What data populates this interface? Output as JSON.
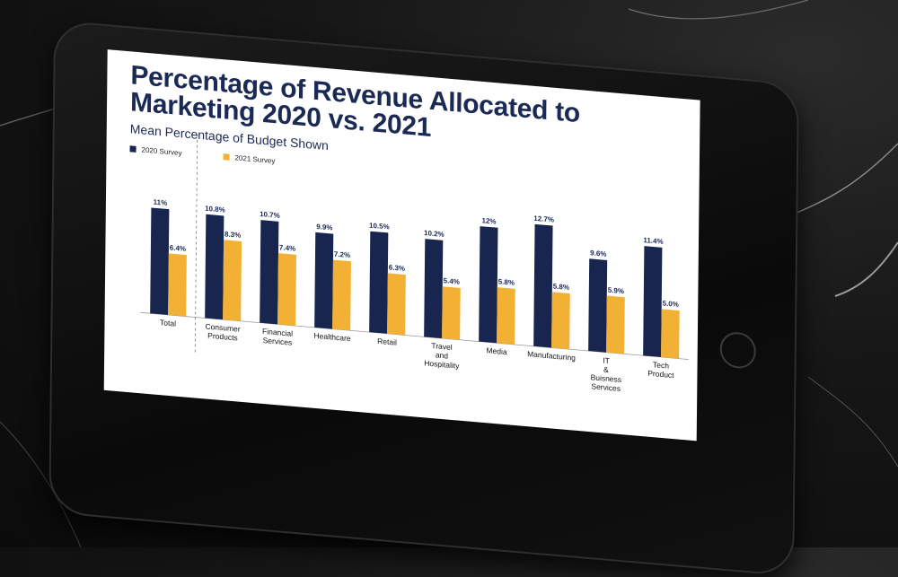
{
  "chart_data": {
    "type": "bar",
    "title": "Percentage of Revenue Allocated to Marketing 2020 vs. 2021",
    "subtitle": "Mean Percentage of Budget Shown",
    "categories": [
      "Total",
      "Consumer Products",
      "Financial Services",
      "Healthcare",
      "Retail",
      "Travel and Hospitality",
      "Media",
      "Manufacturing",
      "IT & Buisness Services",
      "Tech Product"
    ],
    "series": [
      {
        "name": "2020 Survey",
        "color": "#17254f",
        "values": [
          11,
          10.8,
          10.7,
          9.9,
          10.5,
          10.2,
          12,
          12.7,
          9.6,
          11.4
        ],
        "labels": [
          "11%",
          "10.8%",
          "10.7%",
          "9.9%",
          "10.5%",
          "10.2%",
          "12%",
          "12.7%",
          "9.6%",
          "11.4%"
        ]
      },
      {
        "name": "2021 Survey",
        "color": "#f2b134",
        "values": [
          6.4,
          8.3,
          7.4,
          7.2,
          6.3,
          5.4,
          5.8,
          5.8,
          5.9,
          5.0
        ],
        "labels": [
          "6.4%",
          "8.3%",
          "7.4%",
          "7.2%",
          "6.3%",
          "5.4%",
          "5.8%",
          "5.8%",
          "5.9%",
          "5.0%"
        ]
      }
    ],
    "ylim": [
      0,
      14
    ],
    "legend": "top-left",
    "grid": false
  }
}
